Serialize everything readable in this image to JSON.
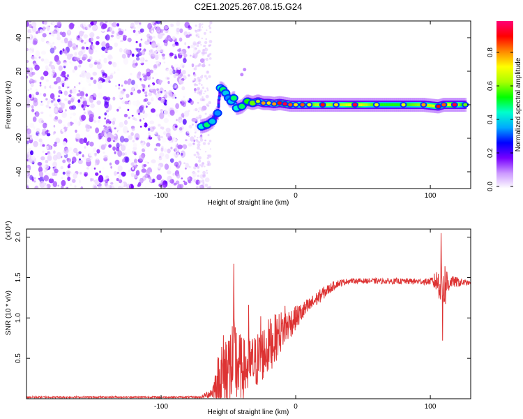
{
  "title": "C2E1.2025.267.08.15.G24",
  "chart_data": [
    {
      "type": "heatmap",
      "title": "C2E1.2025.267.08.15.G24",
      "xlabel": "Height of straight line (km)",
      "ylabel": "Frequency (Hz)",
      "xlim": [
        -200,
        130
      ],
      "ylim": [
        -50,
        50
      ],
      "xticks": [
        -100,
        0,
        100
      ],
      "xtick_labels": [
        "-100",
        "0",
        "100"
      ],
      "yticks": [
        -40,
        -20,
        0,
        20,
        40
      ],
      "ytick_labels": [
        "-40",
        "-20",
        "0",
        "20",
        "40"
      ],
      "colorbar": {
        "label": "Normalized spectral amplitude",
        "range": [
          0,
          1
        ],
        "ticks": [
          0.0,
          0.2,
          0.4,
          0.6,
          0.8
        ],
        "tick_labels": [
          "0.0",
          "0.2",
          "0.4",
          "0.6",
          "0.8"
        ],
        "colors": [
          "#ffffff",
          "#cc99ff",
          "#7700ff",
          "#0000ff",
          "#00aaff",
          "#00ffcc",
          "#00ff00",
          "#aaff00",
          "#ffff00",
          "#ff8800",
          "#ff0000",
          "#ff0077"
        ]
      },
      "noise_region": {
        "x_range": [
          -200,
          -65
        ],
        "freq_range": [
          -50,
          50
        ]
      },
      "signal_track": [
        {
          "x": -70,
          "freq": -13,
          "amp": 0.45
        },
        {
          "x": -66,
          "freq": -12,
          "amp": 0.5
        },
        {
          "x": -62,
          "freq": -10,
          "amp": 0.4
        },
        {
          "x": -58,
          "freq": -5,
          "amp": 0.35
        },
        {
          "x": -56,
          "freq": 10,
          "amp": 0.45
        },
        {
          "x": -54,
          "freq": 9,
          "amp": 0.5
        },
        {
          "x": -52,
          "freq": 7,
          "amp": 0.4
        },
        {
          "x": -50,
          "freq": 4,
          "amp": 0.35
        },
        {
          "x": -48,
          "freq": 2,
          "amp": 0.4
        },
        {
          "x": -46,
          "freq": 4,
          "amp": 0.5
        },
        {
          "x": -44,
          "freq": -2,
          "amp": 0.45
        },
        {
          "x": -40,
          "freq": -1,
          "amp": 0.5
        },
        {
          "x": -36,
          "freq": 2,
          "amp": 0.55
        },
        {
          "x": -32,
          "freq": 1,
          "amp": 0.6
        },
        {
          "x": -28,
          "freq": 2,
          "amp": 0.65
        },
        {
          "x": -24,
          "freq": 1,
          "amp": 0.8
        },
        {
          "x": -20,
          "freq": 1,
          "amp": 0.75
        },
        {
          "x": -16,
          "freq": 0.5,
          "amp": 0.8
        },
        {
          "x": -12,
          "freq": 1,
          "amp": 0.9
        },
        {
          "x": -8,
          "freq": 0.5,
          "amp": 0.95
        },
        {
          "x": -4,
          "freq": 0,
          "amp": 0.85
        },
        {
          "x": 0,
          "freq": 0,
          "amp": 0.75
        },
        {
          "x": 5,
          "freq": 0,
          "amp": 0.85
        },
        {
          "x": 10,
          "freq": 0,
          "amp": 0.7
        },
        {
          "x": 20,
          "freq": 0,
          "amp": 0.9
        },
        {
          "x": 30,
          "freq": 0,
          "amp": 0.75
        },
        {
          "x": 44,
          "freq": 0,
          "amp": 0.95
        },
        {
          "x": 60,
          "freq": 0,
          "amp": 0.7
        },
        {
          "x": 80,
          "freq": 0,
          "amp": 0.7
        },
        {
          "x": 95,
          "freq": 0,
          "amp": 0.8
        },
        {
          "x": 106,
          "freq": -1,
          "amp": 0.9
        },
        {
          "x": 110,
          "freq": 0,
          "amp": 0.85
        },
        {
          "x": 118,
          "freq": 0,
          "amp": 0.95
        },
        {
          "x": 126,
          "freq": 0,
          "amp": 0.6
        }
      ],
      "stray_points": [
        {
          "x": -38,
          "freq": 21,
          "amp": 0.1
        },
        {
          "x": -40,
          "freq": 18,
          "amp": 0.1
        }
      ]
    },
    {
      "type": "line",
      "xlabel": "Height of straight line (km)",
      "ylabel": "SNR (10 * v/v)",
      "y_multiplier": "(x10⁴)",
      "xlim": [
        -200,
        130
      ],
      "ylim": [
        0,
        2.1
      ],
      "xticks": [
        -100,
        0,
        100
      ],
      "xtick_labels": [
        "-100",
        "0",
        "100"
      ],
      "yticks": [
        0.5,
        1.0,
        1.5,
        2.0
      ],
      "ytick_labels": [
        "0.5",
        "1.0",
        "1.5",
        "2.0"
      ],
      "color": "#dd3333",
      "series": [
        {
          "name": "SNR",
          "envelope": [
            {
              "x": -200,
              "base": 0.02,
              "amp": 0.01
            },
            {
              "x": -70,
              "base": 0.02,
              "amp": 0.01
            },
            {
              "x": -62,
              "base": 0.08,
              "amp": 0.08
            },
            {
              "x": -55,
              "base": 0.3,
              "amp": 0.5
            },
            {
              "x": -45,
              "base": 0.45,
              "amp": 0.6
            },
            {
              "x": -40,
              "base": 0.35,
              "amp": 0.4
            },
            {
              "x": -30,
              "base": 0.45,
              "amp": 0.35
            },
            {
              "x": -20,
              "base": 0.65,
              "amp": 0.35
            },
            {
              "x": -10,
              "base": 0.85,
              "amp": 0.25
            },
            {
              "x": 0,
              "base": 1.0,
              "amp": 0.15
            },
            {
              "x": 10,
              "base": 1.15,
              "amp": 0.1
            },
            {
              "x": 20,
              "base": 1.3,
              "amp": 0.08
            },
            {
              "x": 30,
              "base": 1.42,
              "amp": 0.05
            },
            {
              "x": 40,
              "base": 1.46,
              "amp": 0.03
            },
            {
              "x": 100,
              "base": 1.45,
              "amp": 0.04
            },
            {
              "x": 105,
              "base": 1.45,
              "amp": 0.15
            },
            {
              "x": 110,
              "base": 1.4,
              "amp": 0.35
            },
            {
              "x": 115,
              "base": 1.45,
              "amp": 0.08
            },
            {
              "x": 130,
              "base": 1.43,
              "amp": 0.02
            }
          ],
          "peaks": [
            {
              "x": -46,
              "y": 1.67
            },
            {
              "x": -35,
              "y": 1.16
            },
            {
              "x": -26,
              "y": 1.02
            },
            {
              "x": -8,
              "y": 1.15
            },
            {
              "x": 5,
              "y": 1.12
            },
            {
              "x": 108,
              "y": 2.05
            },
            {
              "x": 109,
              "y": 0.72
            }
          ]
        }
      ]
    }
  ]
}
